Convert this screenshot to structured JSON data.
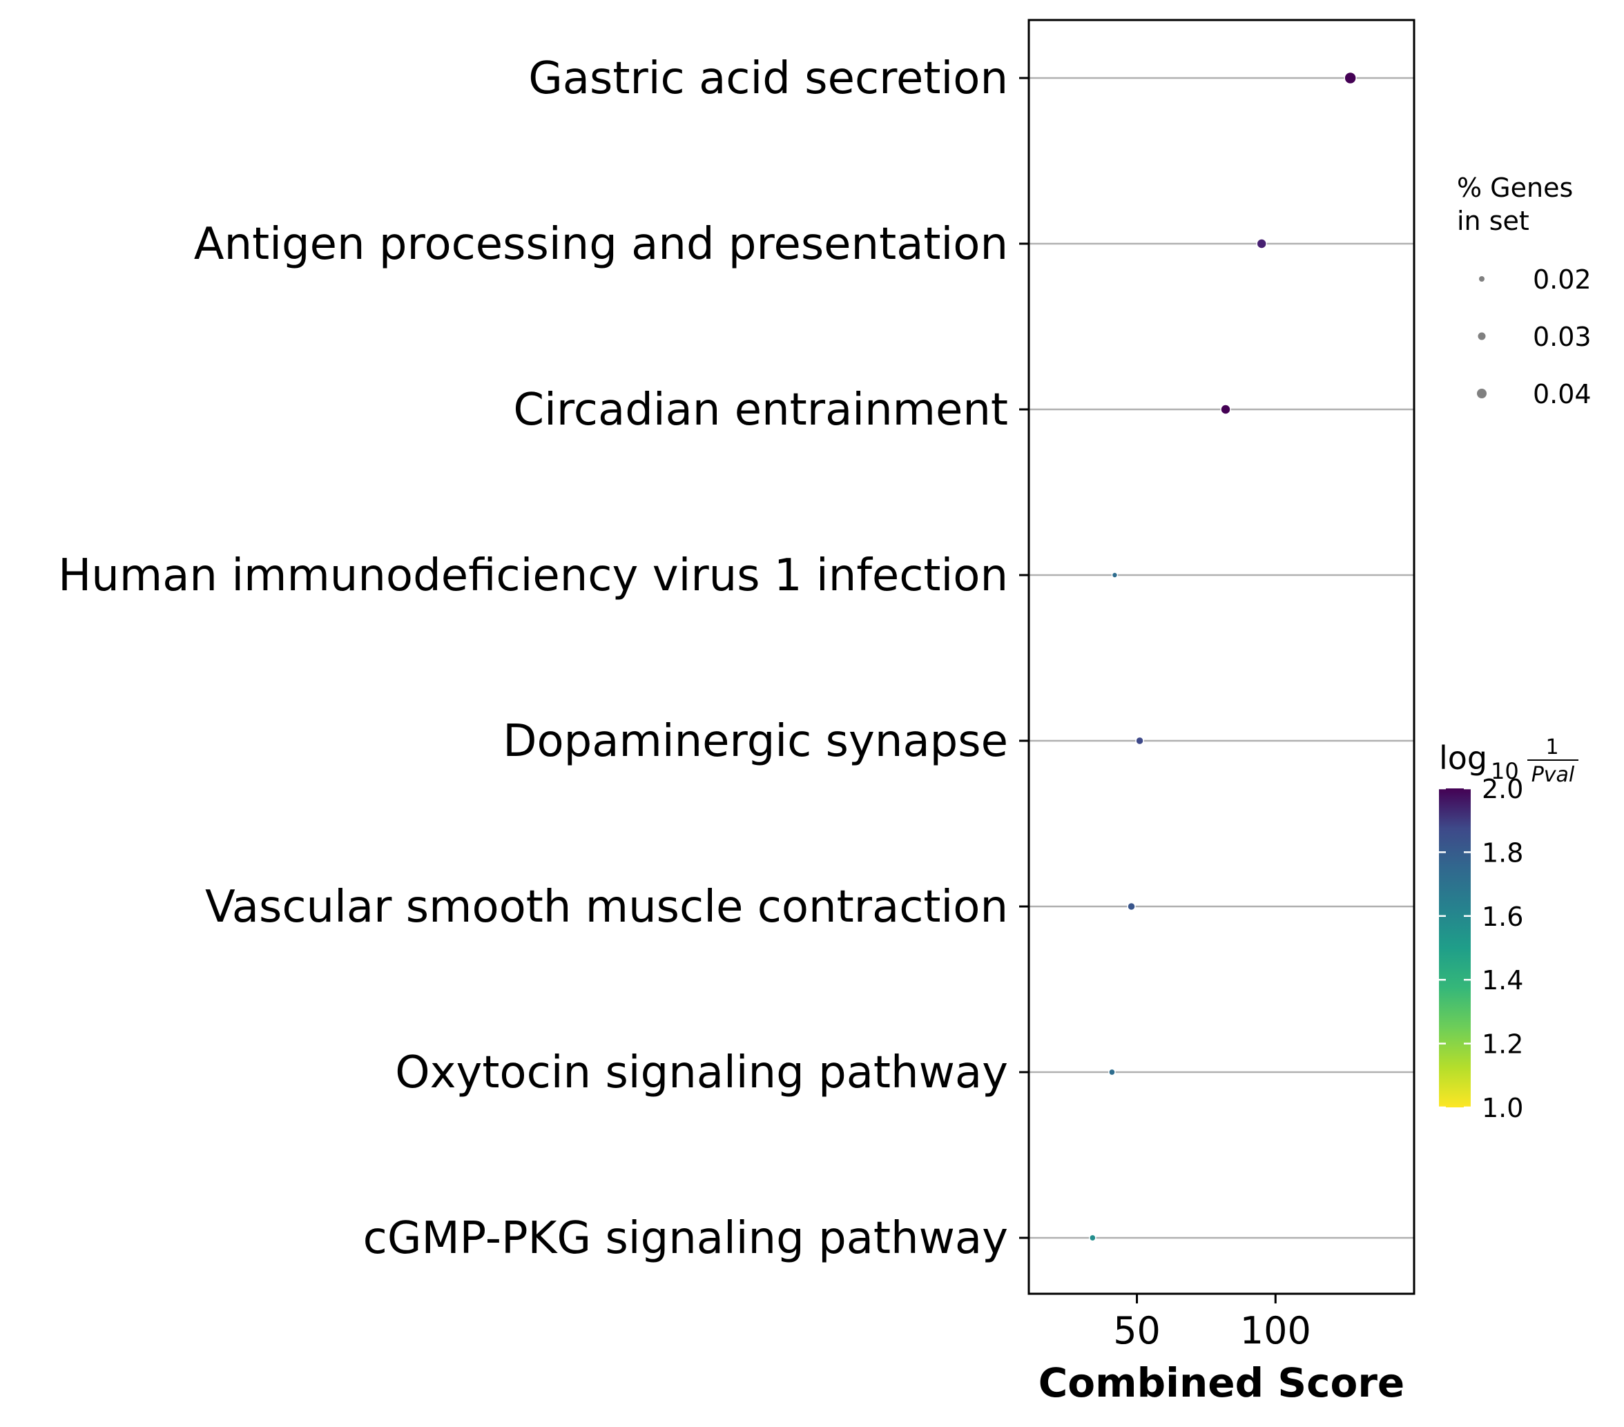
{
  "chart_data": {
    "type": "scatter",
    "title": "",
    "xlabel": "Combined Score",
    "ylabel": "",
    "xlim": [
      11,
      150
    ],
    "xticks": [
      50,
      100
    ],
    "grid": "horizontal",
    "categories": [
      "Gastric acid secretion",
      "Antigen processing and presentation",
      "Circadian entrainment",
      "Human immunodeficiency virus 1 infection",
      "Dopaminergic synapse",
      "Vascular smooth muscle contraction",
      "Oxytocin signaling pathway",
      "cGMP-PKG signaling pathway"
    ],
    "x": [
      127,
      95,
      82,
      42,
      51,
      48,
      41,
      34
    ],
    "neg_log10_pval": [
      2.0,
      1.9,
      2.0,
      1.6,
      1.75,
      1.7,
      1.6,
      1.45
    ],
    "pct_genes_in_set": [
      0.035,
      0.03,
      0.03,
      0.02,
      0.025,
      0.025,
      0.022,
      0.022
    ],
    "size_legend": {
      "title_line1": "% Genes",
      "title_line2": "in set",
      "entries": [
        "0.02",
        "0.03",
        "0.04"
      ]
    },
    "colorbar": {
      "title_main": "log",
      "title_sub": "10",
      "title_num": "1",
      "title_den": "Pval",
      "range": [
        1.0,
        2.0
      ],
      "ticks": [
        "1.0",
        "1.2",
        "1.4",
        "1.6",
        "1.8",
        "2.0"
      ],
      "colormap": "viridis_r"
    },
    "colors": {
      "grid": "#b0b0b0",
      "point_edge": "#ffffff",
      "legend_dot": "#808080"
    }
  }
}
